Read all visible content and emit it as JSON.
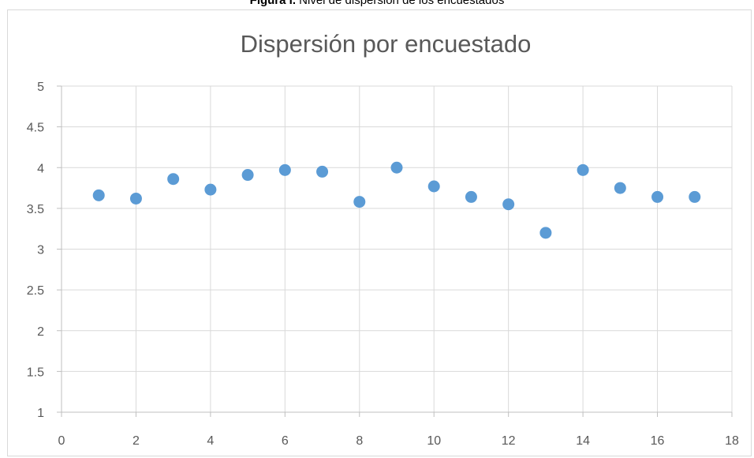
{
  "figure_caption": {
    "label": "Figura I.",
    "text": "Nivel de dispersión de los encuestados"
  },
  "chart_data": {
    "type": "scatter",
    "title": "Dispersión por encuestado",
    "xlabel": "",
    "ylabel": "",
    "xlim": [
      0,
      18
    ],
    "ylim": [
      1,
      5
    ],
    "x_ticks": [
      0,
      2,
      4,
      6,
      8,
      10,
      12,
      14,
      16,
      18
    ],
    "y_ticks": [
      1,
      1.5,
      2,
      2.5,
      3,
      3.5,
      4,
      4.5,
      5
    ],
    "x_tick_labels": [
      "0",
      "2",
      "4",
      "6",
      "8",
      "10",
      "12",
      "14",
      "16",
      "18"
    ],
    "y_tick_labels": [
      "1",
      "1.5",
      "2",
      "2.5",
      "3",
      "3.5",
      "4",
      "4.5",
      "5"
    ],
    "grid": true,
    "legend": "none",
    "marker_color": "#5b9bd5",
    "series": [
      {
        "x": [
          1,
          2,
          3,
          4,
          5,
          6,
          7,
          8,
          9,
          10,
          11,
          12,
          13,
          14,
          15,
          16,
          17
        ],
        "y": [
          3.66,
          3.62,
          3.86,
          3.73,
          3.91,
          3.97,
          3.95,
          3.58,
          4.0,
          3.77,
          3.64,
          3.55,
          3.2,
          3.97,
          3.75,
          3.64,
          3.64
        ]
      }
    ]
  }
}
